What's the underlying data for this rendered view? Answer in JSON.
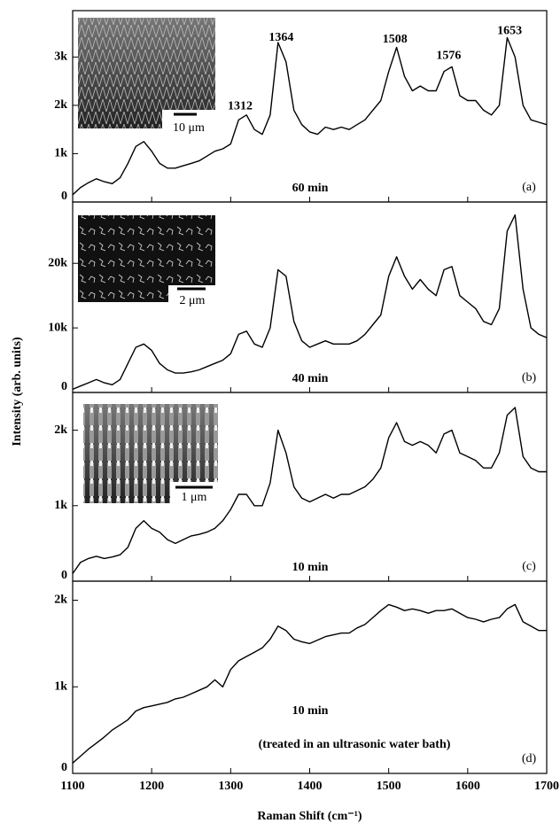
{
  "chart_data": [
    {
      "type": "line",
      "panel_label": "(a)",
      "annotation": "60 min",
      "inset_scale": "10 μm",
      "ylabel": "Intensity (arb. units)",
      "peaks": [
        1312,
        1364,
        1508,
        1576,
        1653
      ],
      "xlim": [
        1100,
        1700
      ],
      "xticks": [
        1100,
        1200,
        1300,
        1400,
        1500,
        1600,
        1700
      ],
      "ylim": [
        0,
        3960
      ],
      "yticks": [
        0,
        {
          "value": 1000,
          "label": "1k"
        },
        {
          "value": 2000,
          "label": "2k"
        },
        {
          "value": 3000,
          "label": "3k"
        }
      ],
      "x": [
        1100,
        1110,
        1120,
        1130,
        1140,
        1150,
        1160,
        1170,
        1180,
        1190,
        1200,
        1210,
        1220,
        1230,
        1240,
        1250,
        1260,
        1270,
        1280,
        1290,
        1300,
        1310,
        1320,
        1330,
        1340,
        1350,
        1360,
        1370,
        1380,
        1390,
        1400,
        1410,
        1420,
        1430,
        1440,
        1450,
        1460,
        1470,
        1480,
        1490,
        1500,
        1510,
        1520,
        1530,
        1540,
        1550,
        1560,
        1570,
        1580,
        1590,
        1600,
        1610,
        1620,
        1630,
        1640,
        1650,
        1660,
        1670,
        1680,
        1690,
        1700
      ],
      "series": [
        {
          "color": "#000000",
          "values": [
            150,
            300,
            400,
            480,
            420,
            380,
            500,
            800,
            1150,
            1250,
            1050,
            800,
            700,
            700,
            750,
            800,
            850,
            950,
            1050,
            1100,
            1200,
            1700,
            1800,
            1500,
            1400,
            1800,
            3300,
            2900,
            1900,
            1600,
            1450,
            1400,
            1550,
            1500,
            1550,
            1500,
            1600,
            1700,
            1900,
            2100,
            2700,
            3200,
            2600,
            2300,
            2400,
            2300,
            2300,
            2700,
            2800,
            2200,
            2100,
            2100,
            1900,
            1800,
            2000,
            3400,
            3000,
            2000,
            1700,
            1650,
            1600
          ]
        }
      ]
    },
    {
      "type": "line",
      "panel_label": "(b)",
      "annotation": "40 min",
      "inset_scale": "2 μm",
      "xlim": [
        1100,
        1700
      ],
      "xticks": [
        1100,
        1200,
        1300,
        1400,
        1500,
        1600,
        1700
      ],
      "ylim": [
        0,
        29500
      ],
      "yticks": [
        0,
        {
          "value": 10000,
          "label": "10k"
        },
        {
          "value": 20000,
          "label": "20k"
        }
      ],
      "x": [
        1100,
        1110,
        1120,
        1130,
        1140,
        1150,
        1160,
        1170,
        1180,
        1190,
        1200,
        1210,
        1220,
        1230,
        1240,
        1250,
        1260,
        1270,
        1280,
        1290,
        1300,
        1310,
        1320,
        1330,
        1340,
        1350,
        1360,
        1370,
        1380,
        1390,
        1400,
        1410,
        1420,
        1430,
        1440,
        1450,
        1460,
        1470,
        1480,
        1490,
        1500,
        1510,
        1520,
        1530,
        1540,
        1550,
        1560,
        1570,
        1580,
        1590,
        1600,
        1610,
        1620,
        1630,
        1640,
        1650,
        1660,
        1670,
        1680,
        1690,
        1700
      ],
      "series": [
        {
          "color": "#000000",
          "values": [
            500,
            1000,
            1500,
            2000,
            1500,
            1200,
            2000,
            4500,
            7000,
            7500,
            6500,
            4500,
            3500,
            3000,
            3000,
            3200,
            3500,
            4000,
            4500,
            5000,
            6000,
            9000,
            9500,
            7500,
            7000,
            10000,
            19000,
            18000,
            11000,
            8000,
            7000,
            7500,
            8000,
            7500,
            7500,
            7500,
            8000,
            9000,
            10500,
            12000,
            18000,
            21000,
            18000,
            16000,
            17500,
            16000,
            15000,
            19000,
            19500,
            15000,
            14000,
            13000,
            11000,
            10500,
            13000,
            25000,
            27500,
            16000,
            10000,
            9000,
            8500
          ]
        }
      ]
    },
    {
      "type": "line",
      "panel_label": "(c)",
      "annotation": "10 min",
      "inset_scale": "1 μm",
      "xlim": [
        1100,
        1700
      ],
      "xticks": [
        1100,
        1200,
        1300,
        1400,
        1500,
        1600,
        1700
      ],
      "ylim": [
        0,
        2500
      ],
      "yticks": [
        0,
        {
          "value": 1000,
          "label": "1k"
        },
        {
          "value": 2000,
          "label": "2k"
        }
      ],
      "x": [
        1100,
        1110,
        1120,
        1130,
        1140,
        1150,
        1160,
        1170,
        1180,
        1190,
        1200,
        1210,
        1220,
        1230,
        1240,
        1250,
        1260,
        1270,
        1280,
        1290,
        1300,
        1310,
        1320,
        1330,
        1340,
        1350,
        1360,
        1370,
        1380,
        1390,
        1400,
        1410,
        1420,
        1430,
        1440,
        1450,
        1460,
        1470,
        1480,
        1490,
        1500,
        1510,
        1520,
        1530,
        1540,
        1550,
        1560,
        1570,
        1580,
        1590,
        1600,
        1610,
        1620,
        1630,
        1640,
        1650,
        1660,
        1670,
        1680,
        1690,
        1700
      ],
      "series": [
        {
          "color": "#000000",
          "values": [
            100,
            250,
            300,
            330,
            300,
            320,
            350,
            450,
            700,
            800,
            700,
            650,
            550,
            500,
            550,
            600,
            620,
            650,
            700,
            800,
            950,
            1150,
            1150,
            1000,
            1000,
            1300,
            2000,
            1700,
            1250,
            1100,
            1050,
            1100,
            1150,
            1100,
            1150,
            1150,
            1200,
            1250,
            1350,
            1500,
            1900,
            2100,
            1850,
            1800,
            1850,
            1800,
            1700,
            1950,
            2000,
            1700,
            1650,
            1600,
            1500,
            1500,
            1700,
            2200,
            2300,
            1650,
            1500,
            1450,
            1450
          ]
        }
      ]
    },
    {
      "type": "line",
      "panel_label": "(d)",
      "annotation": "10 min",
      "note": "(treated in an ultrasonic water bath)",
      "xlabel": "Raman Shift (cm⁻¹)",
      "xlim": [
        1100,
        1700
      ],
      "xticks": [
        1100,
        1200,
        1300,
        1400,
        1500,
        1600,
        1700
      ],
      "ylim": [
        0,
        2220
      ],
      "yticks": [
        0,
        {
          "value": 1000,
          "label": "1k"
        },
        {
          "value": 2000,
          "label": "2k"
        }
      ],
      "x": [
        1100,
        1110,
        1120,
        1130,
        1140,
        1150,
        1160,
        1170,
        1180,
        1190,
        1200,
        1210,
        1220,
        1230,
        1240,
        1250,
        1260,
        1270,
        1280,
        1290,
        1300,
        1310,
        1320,
        1330,
        1340,
        1350,
        1360,
        1370,
        1380,
        1390,
        1400,
        1410,
        1420,
        1430,
        1440,
        1450,
        1460,
        1470,
        1480,
        1490,
        1500,
        1510,
        1520,
        1530,
        1540,
        1550,
        1560,
        1570,
        1580,
        1590,
        1600,
        1610,
        1620,
        1630,
        1640,
        1650,
        1660,
        1670,
        1680,
        1690,
        1700
      ],
      "series": [
        {
          "color": "#000000",
          "values": [
            120,
            200,
            280,
            350,
            420,
            500,
            560,
            620,
            720,
            760,
            780,
            800,
            820,
            860,
            880,
            920,
            960,
            1000,
            1080,
            1000,
            1200,
            1300,
            1350,
            1400,
            1450,
            1550,
            1700,
            1650,
            1550,
            1520,
            1500,
            1540,
            1580,
            1600,
            1620,
            1620,
            1680,
            1720,
            1800,
            1880,
            1950,
            1920,
            1880,
            1900,
            1880,
            1850,
            1880,
            1880,
            1900,
            1850,
            1800,
            1780,
            1750,
            1780,
            1800,
            1900,
            1950,
            1750,
            1700,
            1650,
            1650
          ]
        }
      ]
    }
  ]
}
